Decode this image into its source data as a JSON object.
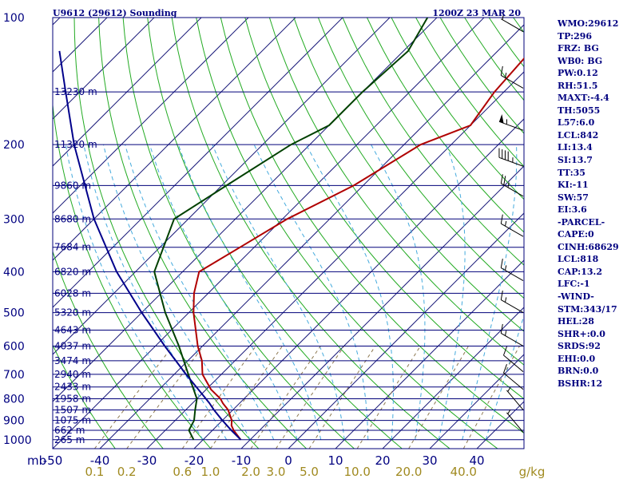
{
  "chart_data": {
    "type": "line",
    "title": "U9612 (29612) Sounding",
    "valid_time": "1200Z 23 MAR 20",
    "pressure_unit": "mb",
    "pressure_ticks": [
      100,
      200,
      300,
      400,
      500,
      600,
      700,
      800,
      900,
      1000
    ],
    "temperature_ticks": [
      -50,
      -40,
      -30,
      -20,
      -10,
      0,
      10,
      20,
      30,
      40
    ],
    "temperature_range": [
      -50,
      50
    ],
    "mixing_ratio_unit": "g/kg",
    "mixing_ratio_ticks": [
      "0.1",
      "0.2",
      "0.6",
      "1.0",
      "2.0",
      "3.0",
      "5.0",
      "10.0",
      "20.0",
      "40.0"
    ],
    "heights": [
      {
        "p": 150,
        "label": "13230 m"
      },
      {
        "p": 200,
        "label": "11320 m"
      },
      {
        "p": 250,
        "label": "9860 m"
      },
      {
        "p": 300,
        "label": "8680 m"
      },
      {
        "p": 350,
        "label": "7684 m"
      },
      {
        "p": 400,
        "label": "6820 m"
      },
      {
        "p": 450,
        "label": "6028 m"
      },
      {
        "p": 500,
        "label": "5320 m"
      },
      {
        "p": 550,
        "label": "4643 m"
      },
      {
        "p": 600,
        "label": "4037 m"
      },
      {
        "p": 650,
        "label": "3474 m"
      },
      {
        "p": 700,
        "label": "2940 m"
      },
      {
        "p": 750,
        "label": "2433 m"
      },
      {
        "p": 800,
        "label": "1958 m"
      },
      {
        "p": 850,
        "label": "1507 m"
      },
      {
        "p": 900,
        "label": "1075 m"
      },
      {
        "p": 950,
        "label": "662 m"
      },
      {
        "p": 1000,
        "label": "265 m"
      }
    ],
    "series": [
      {
        "name": "Temperature",
        "color": "#b00000",
        "points": [
          {
            "p": 1000,
            "t": -12.0
          },
          {
            "p": 950,
            "t": -15.5
          },
          {
            "p": 925,
            "t": -17.0
          },
          {
            "p": 900,
            "t": -18.0
          },
          {
            "p": 850,
            "t": -21.0
          },
          {
            "p": 820,
            "t": -23.5
          },
          {
            "p": 800,
            "t": -25.0
          },
          {
            "p": 760,
            "t": -29.0
          },
          {
            "p": 700,
            "t": -34.0
          },
          {
            "p": 650,
            "t": -37.0
          },
          {
            "p": 600,
            "t": -41.0
          },
          {
            "p": 500,
            "t": -49.0
          },
          {
            "p": 450,
            "t": -53.0
          },
          {
            "p": 400,
            "t": -56.5
          },
          {
            "p": 350,
            "t": -53.0
          },
          {
            "p": 300,
            "t": -49.0
          },
          {
            "p": 250,
            "t": -42.0
          },
          {
            "p": 200,
            "t": -36.5
          },
          {
            "p": 180,
            "t": -30.0
          },
          {
            "p": 150,
            "t": -32.0
          },
          {
            "p": 120,
            "t": -33.0
          },
          {
            "p": 100,
            "t": -38.0
          }
        ]
      },
      {
        "name": "Dewpoint",
        "color": "#004000",
        "points": [
          {
            "p": 1000,
            "t": -22.0
          },
          {
            "p": 950,
            "t": -25.0
          },
          {
            "p": 900,
            "t": -26.0
          },
          {
            "p": 850,
            "t": -28.0
          },
          {
            "p": 800,
            "t": -30.0
          },
          {
            "p": 700,
            "t": -37.0
          },
          {
            "p": 600,
            "t": -45.0
          },
          {
            "p": 500,
            "t": -55.0
          },
          {
            "p": 400,
            "t": -66.0
          },
          {
            "p": 300,
            "t": -73.0
          },
          {
            "p": 250,
            "t": -69.0
          },
          {
            "p": 200,
            "t": -64.0
          },
          {
            "p": 180,
            "t": -60.0
          },
          {
            "p": 150,
            "t": -60.0
          },
          {
            "p": 120,
            "t": -59.0
          },
          {
            "p": 100,
            "t": -62.0
          }
        ]
      },
      {
        "name": "Parcel",
        "color": "#00008b",
        "points": [
          {
            "p": 1000,
            "t": -12.0
          },
          {
            "p": 950,
            "t": -16.0
          },
          {
            "p": 900,
            "t": -20.0
          },
          {
            "p": 850,
            "t": -24.0
          },
          {
            "p": 818,
            "t": -26.5
          },
          {
            "p": 700,
            "t": -37.5
          },
          {
            "p": 600,
            "t": -48.0
          },
          {
            "p": 500,
            "t": -60.0
          },
          {
            "p": 400,
            "t": -74.0
          },
          {
            "p": 300,
            "t": -90.0
          },
          {
            "p": 200,
            "t": -110.0
          },
          {
            "p": 150,
            "t": -123.0
          },
          {
            "p": 120,
            "t": -133.0
          }
        ]
      }
    ],
    "wind_barbs": [
      {
        "p": 108,
        "dir": 300,
        "speed": 5
      },
      {
        "p": 147,
        "dir": 300,
        "speed": 15
      },
      {
        "p": 185,
        "dir": 290,
        "speed": 55
      },
      {
        "p": 225,
        "dir": 290,
        "speed": 45
      },
      {
        "p": 265,
        "dir": 300,
        "speed": 25
      },
      {
        "p": 330,
        "dir": 300,
        "speed": 15
      },
      {
        "p": 420,
        "dir": 300,
        "speed": 15
      },
      {
        "p": 500,
        "dir": 300,
        "speed": 15
      },
      {
        "p": 600,
        "dir": 300,
        "speed": 15
      },
      {
        "p": 690,
        "dir": 310,
        "speed": 10
      },
      {
        "p": 760,
        "dir": 310,
        "speed": 10
      },
      {
        "p": 850,
        "dir": 320,
        "speed": 5
      },
      {
        "p": 960,
        "dir": 320,
        "speed": 5
      }
    ]
  },
  "indices": [
    "WMO:29612",
    "TP:296",
    "FRZ: BG",
    "WB0: BG",
    "PW:0.12",
    "RH:51.5",
    "MAXT:-4.4",
    "TH:5055",
    "L57:6.0",
    "LCL:842",
    "LI:13.4",
    "SI:13.7",
    "TT:35",
    "KI:-11",
    "SW:57",
    "EI:3.6",
    "-PARCEL-",
    "CAPE:0",
    "CINH:68629",
    "LCL:818",
    "CAP:13.2",
    "LFC:-1",
    "-WIND-",
    "STM:343/17",
    "HEL:28",
    "SHR+:0.0",
    "SRDS:92",
    "EHI:0.0",
    "BRN:0.0",
    "BSHR:12"
  ],
  "colors": {
    "isobar": "#00007a",
    "isotherm": "#1a1a7a",
    "dry_adiabat": "#22aa22",
    "moist_adiabat": "#44aadd",
    "mixing_ratio": "#8c7850",
    "labels": "#000080"
  }
}
